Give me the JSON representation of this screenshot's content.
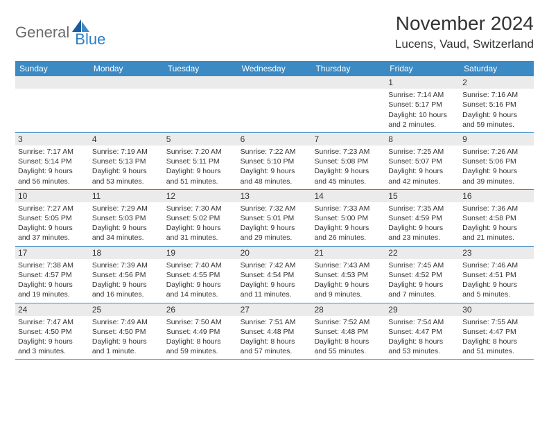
{
  "logo": {
    "part1": "General",
    "part2": "Blue"
  },
  "title": "November 2024",
  "location": "Lucens, Vaud, Switzerland",
  "weekdays": [
    "Sunday",
    "Monday",
    "Tuesday",
    "Wednesday",
    "Thursday",
    "Friday",
    "Saturday"
  ],
  "colors": {
    "header_bg": "#3b8ac4",
    "header_text": "#ffffff",
    "daynum_bg": "#ebebeb",
    "border": "#3b8ac4",
    "text": "#333333",
    "logo_gray": "#6b6b6b",
    "logo_blue": "#2a7ec4"
  },
  "weeks": [
    [
      {
        "n": "",
        "sr": "",
        "ss": "",
        "dl": ""
      },
      {
        "n": "",
        "sr": "",
        "ss": "",
        "dl": ""
      },
      {
        "n": "",
        "sr": "",
        "ss": "",
        "dl": ""
      },
      {
        "n": "",
        "sr": "",
        "ss": "",
        "dl": ""
      },
      {
        "n": "",
        "sr": "",
        "ss": "",
        "dl": ""
      },
      {
        "n": "1",
        "sr": "Sunrise: 7:14 AM",
        "ss": "Sunset: 5:17 PM",
        "dl": "Daylight: 10 hours and 2 minutes."
      },
      {
        "n": "2",
        "sr": "Sunrise: 7:16 AM",
        "ss": "Sunset: 5:16 PM",
        "dl": "Daylight: 9 hours and 59 minutes."
      }
    ],
    [
      {
        "n": "3",
        "sr": "Sunrise: 7:17 AM",
        "ss": "Sunset: 5:14 PM",
        "dl": "Daylight: 9 hours and 56 minutes."
      },
      {
        "n": "4",
        "sr": "Sunrise: 7:19 AM",
        "ss": "Sunset: 5:13 PM",
        "dl": "Daylight: 9 hours and 53 minutes."
      },
      {
        "n": "5",
        "sr": "Sunrise: 7:20 AM",
        "ss": "Sunset: 5:11 PM",
        "dl": "Daylight: 9 hours and 51 minutes."
      },
      {
        "n": "6",
        "sr": "Sunrise: 7:22 AM",
        "ss": "Sunset: 5:10 PM",
        "dl": "Daylight: 9 hours and 48 minutes."
      },
      {
        "n": "7",
        "sr": "Sunrise: 7:23 AM",
        "ss": "Sunset: 5:08 PM",
        "dl": "Daylight: 9 hours and 45 minutes."
      },
      {
        "n": "8",
        "sr": "Sunrise: 7:25 AM",
        "ss": "Sunset: 5:07 PM",
        "dl": "Daylight: 9 hours and 42 minutes."
      },
      {
        "n": "9",
        "sr": "Sunrise: 7:26 AM",
        "ss": "Sunset: 5:06 PM",
        "dl": "Daylight: 9 hours and 39 minutes."
      }
    ],
    [
      {
        "n": "10",
        "sr": "Sunrise: 7:27 AM",
        "ss": "Sunset: 5:05 PM",
        "dl": "Daylight: 9 hours and 37 minutes."
      },
      {
        "n": "11",
        "sr": "Sunrise: 7:29 AM",
        "ss": "Sunset: 5:03 PM",
        "dl": "Daylight: 9 hours and 34 minutes."
      },
      {
        "n": "12",
        "sr": "Sunrise: 7:30 AM",
        "ss": "Sunset: 5:02 PM",
        "dl": "Daylight: 9 hours and 31 minutes."
      },
      {
        "n": "13",
        "sr": "Sunrise: 7:32 AM",
        "ss": "Sunset: 5:01 PM",
        "dl": "Daylight: 9 hours and 29 minutes."
      },
      {
        "n": "14",
        "sr": "Sunrise: 7:33 AM",
        "ss": "Sunset: 5:00 PM",
        "dl": "Daylight: 9 hours and 26 minutes."
      },
      {
        "n": "15",
        "sr": "Sunrise: 7:35 AM",
        "ss": "Sunset: 4:59 PM",
        "dl": "Daylight: 9 hours and 23 minutes."
      },
      {
        "n": "16",
        "sr": "Sunrise: 7:36 AM",
        "ss": "Sunset: 4:58 PM",
        "dl": "Daylight: 9 hours and 21 minutes."
      }
    ],
    [
      {
        "n": "17",
        "sr": "Sunrise: 7:38 AM",
        "ss": "Sunset: 4:57 PM",
        "dl": "Daylight: 9 hours and 19 minutes."
      },
      {
        "n": "18",
        "sr": "Sunrise: 7:39 AM",
        "ss": "Sunset: 4:56 PM",
        "dl": "Daylight: 9 hours and 16 minutes."
      },
      {
        "n": "19",
        "sr": "Sunrise: 7:40 AM",
        "ss": "Sunset: 4:55 PM",
        "dl": "Daylight: 9 hours and 14 minutes."
      },
      {
        "n": "20",
        "sr": "Sunrise: 7:42 AM",
        "ss": "Sunset: 4:54 PM",
        "dl": "Daylight: 9 hours and 11 minutes."
      },
      {
        "n": "21",
        "sr": "Sunrise: 7:43 AM",
        "ss": "Sunset: 4:53 PM",
        "dl": "Daylight: 9 hours and 9 minutes."
      },
      {
        "n": "22",
        "sr": "Sunrise: 7:45 AM",
        "ss": "Sunset: 4:52 PM",
        "dl": "Daylight: 9 hours and 7 minutes."
      },
      {
        "n": "23",
        "sr": "Sunrise: 7:46 AM",
        "ss": "Sunset: 4:51 PM",
        "dl": "Daylight: 9 hours and 5 minutes."
      }
    ],
    [
      {
        "n": "24",
        "sr": "Sunrise: 7:47 AM",
        "ss": "Sunset: 4:50 PM",
        "dl": "Daylight: 9 hours and 3 minutes."
      },
      {
        "n": "25",
        "sr": "Sunrise: 7:49 AM",
        "ss": "Sunset: 4:50 PM",
        "dl": "Daylight: 9 hours and 1 minute."
      },
      {
        "n": "26",
        "sr": "Sunrise: 7:50 AM",
        "ss": "Sunset: 4:49 PM",
        "dl": "Daylight: 8 hours and 59 minutes."
      },
      {
        "n": "27",
        "sr": "Sunrise: 7:51 AM",
        "ss": "Sunset: 4:48 PM",
        "dl": "Daylight: 8 hours and 57 minutes."
      },
      {
        "n": "28",
        "sr": "Sunrise: 7:52 AM",
        "ss": "Sunset: 4:48 PM",
        "dl": "Daylight: 8 hours and 55 minutes."
      },
      {
        "n": "29",
        "sr": "Sunrise: 7:54 AM",
        "ss": "Sunset: 4:47 PM",
        "dl": "Daylight: 8 hours and 53 minutes."
      },
      {
        "n": "30",
        "sr": "Sunrise: 7:55 AM",
        "ss": "Sunset: 4:47 PM",
        "dl": "Daylight: 8 hours and 51 minutes."
      }
    ]
  ]
}
